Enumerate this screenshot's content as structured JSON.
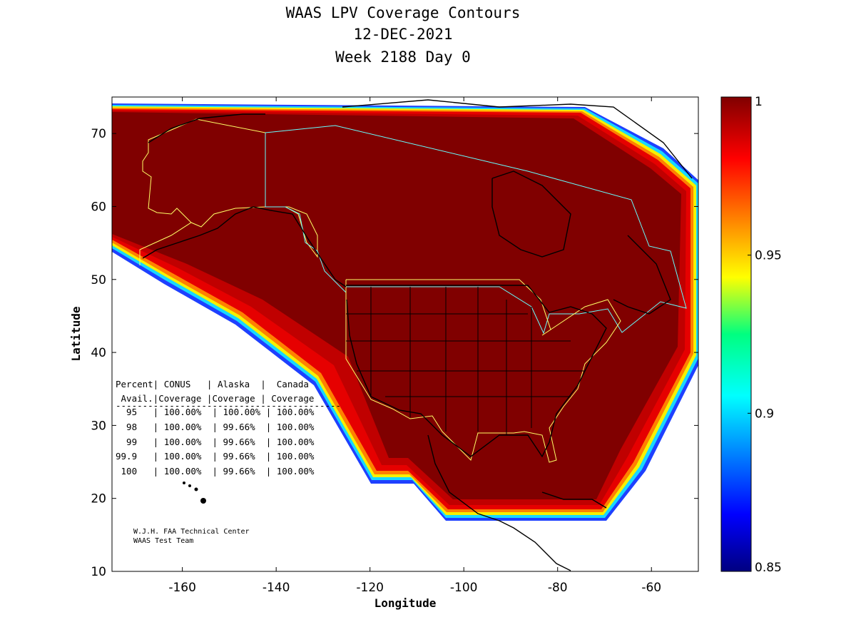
{
  "title": {
    "line1": "WAAS LPV Coverage Contours",
    "line2": "12-DEC-2021",
    "line3": "Week 2188 Day 0"
  },
  "axes": {
    "xlabel": "Longitude",
    "ylabel": "Latitude",
    "xlim": [
      -175,
      -50
    ],
    "ylim": [
      10,
      75
    ],
    "xticks": [
      -160,
      -140,
      -120,
      -100,
      -80,
      -60
    ],
    "yticks": [
      10,
      20,
      30,
      40,
      50,
      60,
      70
    ]
  },
  "colorbar": {
    "min": 0.85,
    "max": 1,
    "tick_labels": [
      "1",
      "0.95",
      "0.9",
      "0.85"
    ],
    "tick_values": [
      1,
      0.95,
      0.9,
      0.85
    ],
    "colormap": "jet",
    "dominant_color": "#800000"
  },
  "stats_table": {
    "header1": "Percent| CONUS   | Alaska  |  Canada",
    "header2": " Avail.|Coverage |Coverage | Coverage",
    "divider": "------------------------------------------",
    "rows": [
      "  95   | 100.00%  | 100.00% | 100.00%",
      "  98   | 100.00%  | 99.66%  | 100.00%",
      "  99   | 100.00%  | 99.66%  | 100.00%",
      "99.9   | 100.00%  | 99.66%  | 100.00%",
      " 100   | 100.00%  | 99.66%  | 100.00%"
    ]
  },
  "credits": {
    "line1": "W.J.H. FAA Technical Center",
    "line2": "WAAS Test Team"
  },
  "chart_data": {
    "type": "heatmap",
    "title": "WAAS LPV Coverage Contours",
    "xlabel": "Longitude",
    "ylabel": "Latitude",
    "xlim": [
      -175,
      -50
    ],
    "ylim": [
      10,
      75
    ],
    "value_range": [
      0.85,
      1
    ],
    "coverage": [
      {
        "region": "CONUS",
        "percent_avail": [
          95,
          98,
          99,
          99.9,
          100
        ],
        "coverage_pct": [
          100.0,
          100.0,
          100.0,
          100.0,
          100.0
        ]
      },
      {
        "region": "Alaska",
        "percent_avail": [
          95,
          98,
          99,
          99.9,
          100
        ],
        "coverage_pct": [
          100.0,
          99.66,
          99.66,
          99.66,
          99.66
        ]
      },
      {
        "region": "Canada",
        "percent_avail": [
          95,
          98,
          99,
          99.9,
          100
        ],
        "coverage_pct": [
          100.0,
          100.0,
          100.0,
          100.0,
          100.0
        ]
      }
    ]
  }
}
